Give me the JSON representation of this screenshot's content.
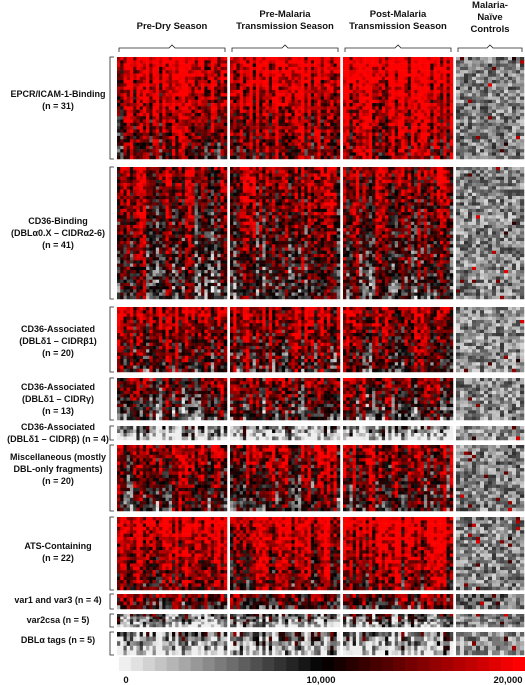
{
  "chart_data": {
    "type": "heatmap",
    "columns": [
      {
        "label_lines": [
          "Pre-Dry Season"
        ],
        "n_samples": 34
      },
      {
        "label_lines": [
          "Pre-Malaria",
          "Transmission Season"
        ],
        "n_samples": 34
      },
      {
        "label_lines": [
          "Post-Malaria",
          "Transmission Season"
        ],
        "n_samples": 34
      },
      {
        "label_lines": [
          "Malaria-",
          "Naïve",
          "Controls"
        ],
        "n_samples": 17
      }
    ],
    "groups": [
      {
        "label_lines": [
          "EPCR/ICAM-1-Binding",
          "(n = 31)"
        ],
        "n": 31,
        "intensity": [
          0.82,
          0.86,
          0.9,
          0.06
        ]
      },
      {
        "label_lines": [
          "CD36-Binding",
          "(DBLα0.X – CIDRα2-6)",
          "(n = 41)"
        ],
        "n": 41,
        "intensity": [
          0.62,
          0.64,
          0.66,
          0.05
        ]
      },
      {
        "label_lines": [
          "CD36-Associated",
          "(DBLδ1 – CIDRβ1)",
          "(n = 20)"
        ],
        "n": 20,
        "intensity": [
          0.66,
          0.7,
          0.72,
          0.04
        ]
      },
      {
        "label_lines": [
          "CD36-Associated",
          "(DBLδ1 – CIDRγ)",
          "(n = 13)"
        ],
        "n": 13,
        "intensity": [
          0.52,
          0.54,
          0.56,
          0.05
        ]
      },
      {
        "label_lines": [
          "CD36-Associated",
          "(DBLδ1 – CIDRβ) (n = 4)"
        ],
        "n": 4,
        "intensity": [
          0.1,
          0.1,
          0.1,
          0.03
        ]
      },
      {
        "label_lines": [
          "Miscellaneous (mostly",
          "DBL-only fragments)",
          "(n = 20)"
        ],
        "n": 20,
        "intensity": [
          0.64,
          0.64,
          0.66,
          0.06
        ]
      },
      {
        "label_lines": [
          "ATS-Containing",
          "(n = 22)"
        ],
        "n": 22,
        "intensity": [
          0.86,
          0.8,
          0.84,
          0.05
        ]
      },
      {
        "label_lines": [
          "var1 and var3 (n = 4)"
        ],
        "n": 4,
        "intensity": [
          0.55,
          0.58,
          0.6,
          0.1
        ]
      },
      {
        "label_lines": [
          "var2csa (n = 5)"
        ],
        "n": 5,
        "intensity": [
          0.18,
          0.18,
          0.22,
          0.04
        ]
      },
      {
        "label_lines": [
          "DBLα tags (n = 5)"
        ],
        "n": 5,
        "intensity": [
          0.12,
          0.12,
          0.14,
          0.03
        ]
      }
    ],
    "colorbar": {
      "stops": [
        "#efefef",
        "#000000",
        "#ff0000"
      ],
      "tick_labels": [
        "0",
        "10,000",
        "20,000"
      ],
      "range": [
        0,
        20000
      ]
    }
  }
}
